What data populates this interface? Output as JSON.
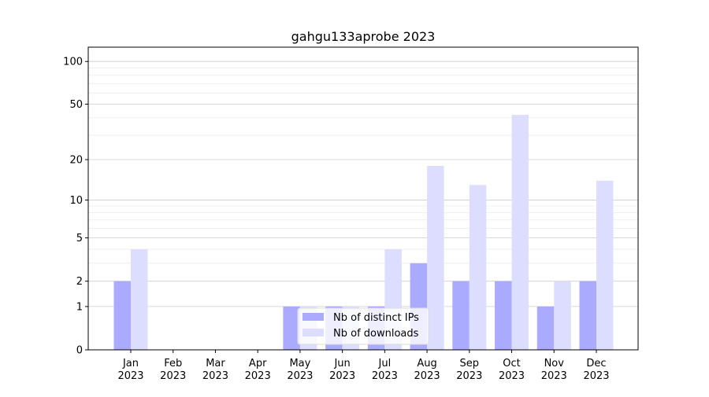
{
  "chart_data": {
    "type": "bar",
    "title": "gahgu133aprobe 2023",
    "xlabel": "",
    "ylabel": "",
    "yscale": "log(1+y)",
    "ylim": [
      0,
      126
    ],
    "yticks": [
      0,
      1,
      2,
      5,
      10,
      20,
      50,
      100
    ],
    "grid": true,
    "legend_position": "lower-center",
    "categories": [
      "Jan\n2023",
      "Feb\n2023",
      "Mar\n2023",
      "Apr\n2023",
      "May\n2023",
      "Jun\n2023",
      "Jul\n2023",
      "Aug\n2023",
      "Sep\n2023",
      "Oct\n2023",
      "Nov\n2023",
      "Dec\n2023"
    ],
    "series": [
      {
        "name": "Nb of distinct IPs",
        "color": "#aaaaff",
        "values": [
          2,
          0,
          0,
          0,
          1,
          1,
          1,
          3,
          2,
          2,
          1,
          2
        ]
      },
      {
        "name": "Nb of downloads",
        "color": "#ddddff",
        "values": [
          4,
          0,
          0,
          0,
          1,
          1,
          4,
          18,
          13,
          42,
          2,
          14
        ]
      }
    ]
  }
}
